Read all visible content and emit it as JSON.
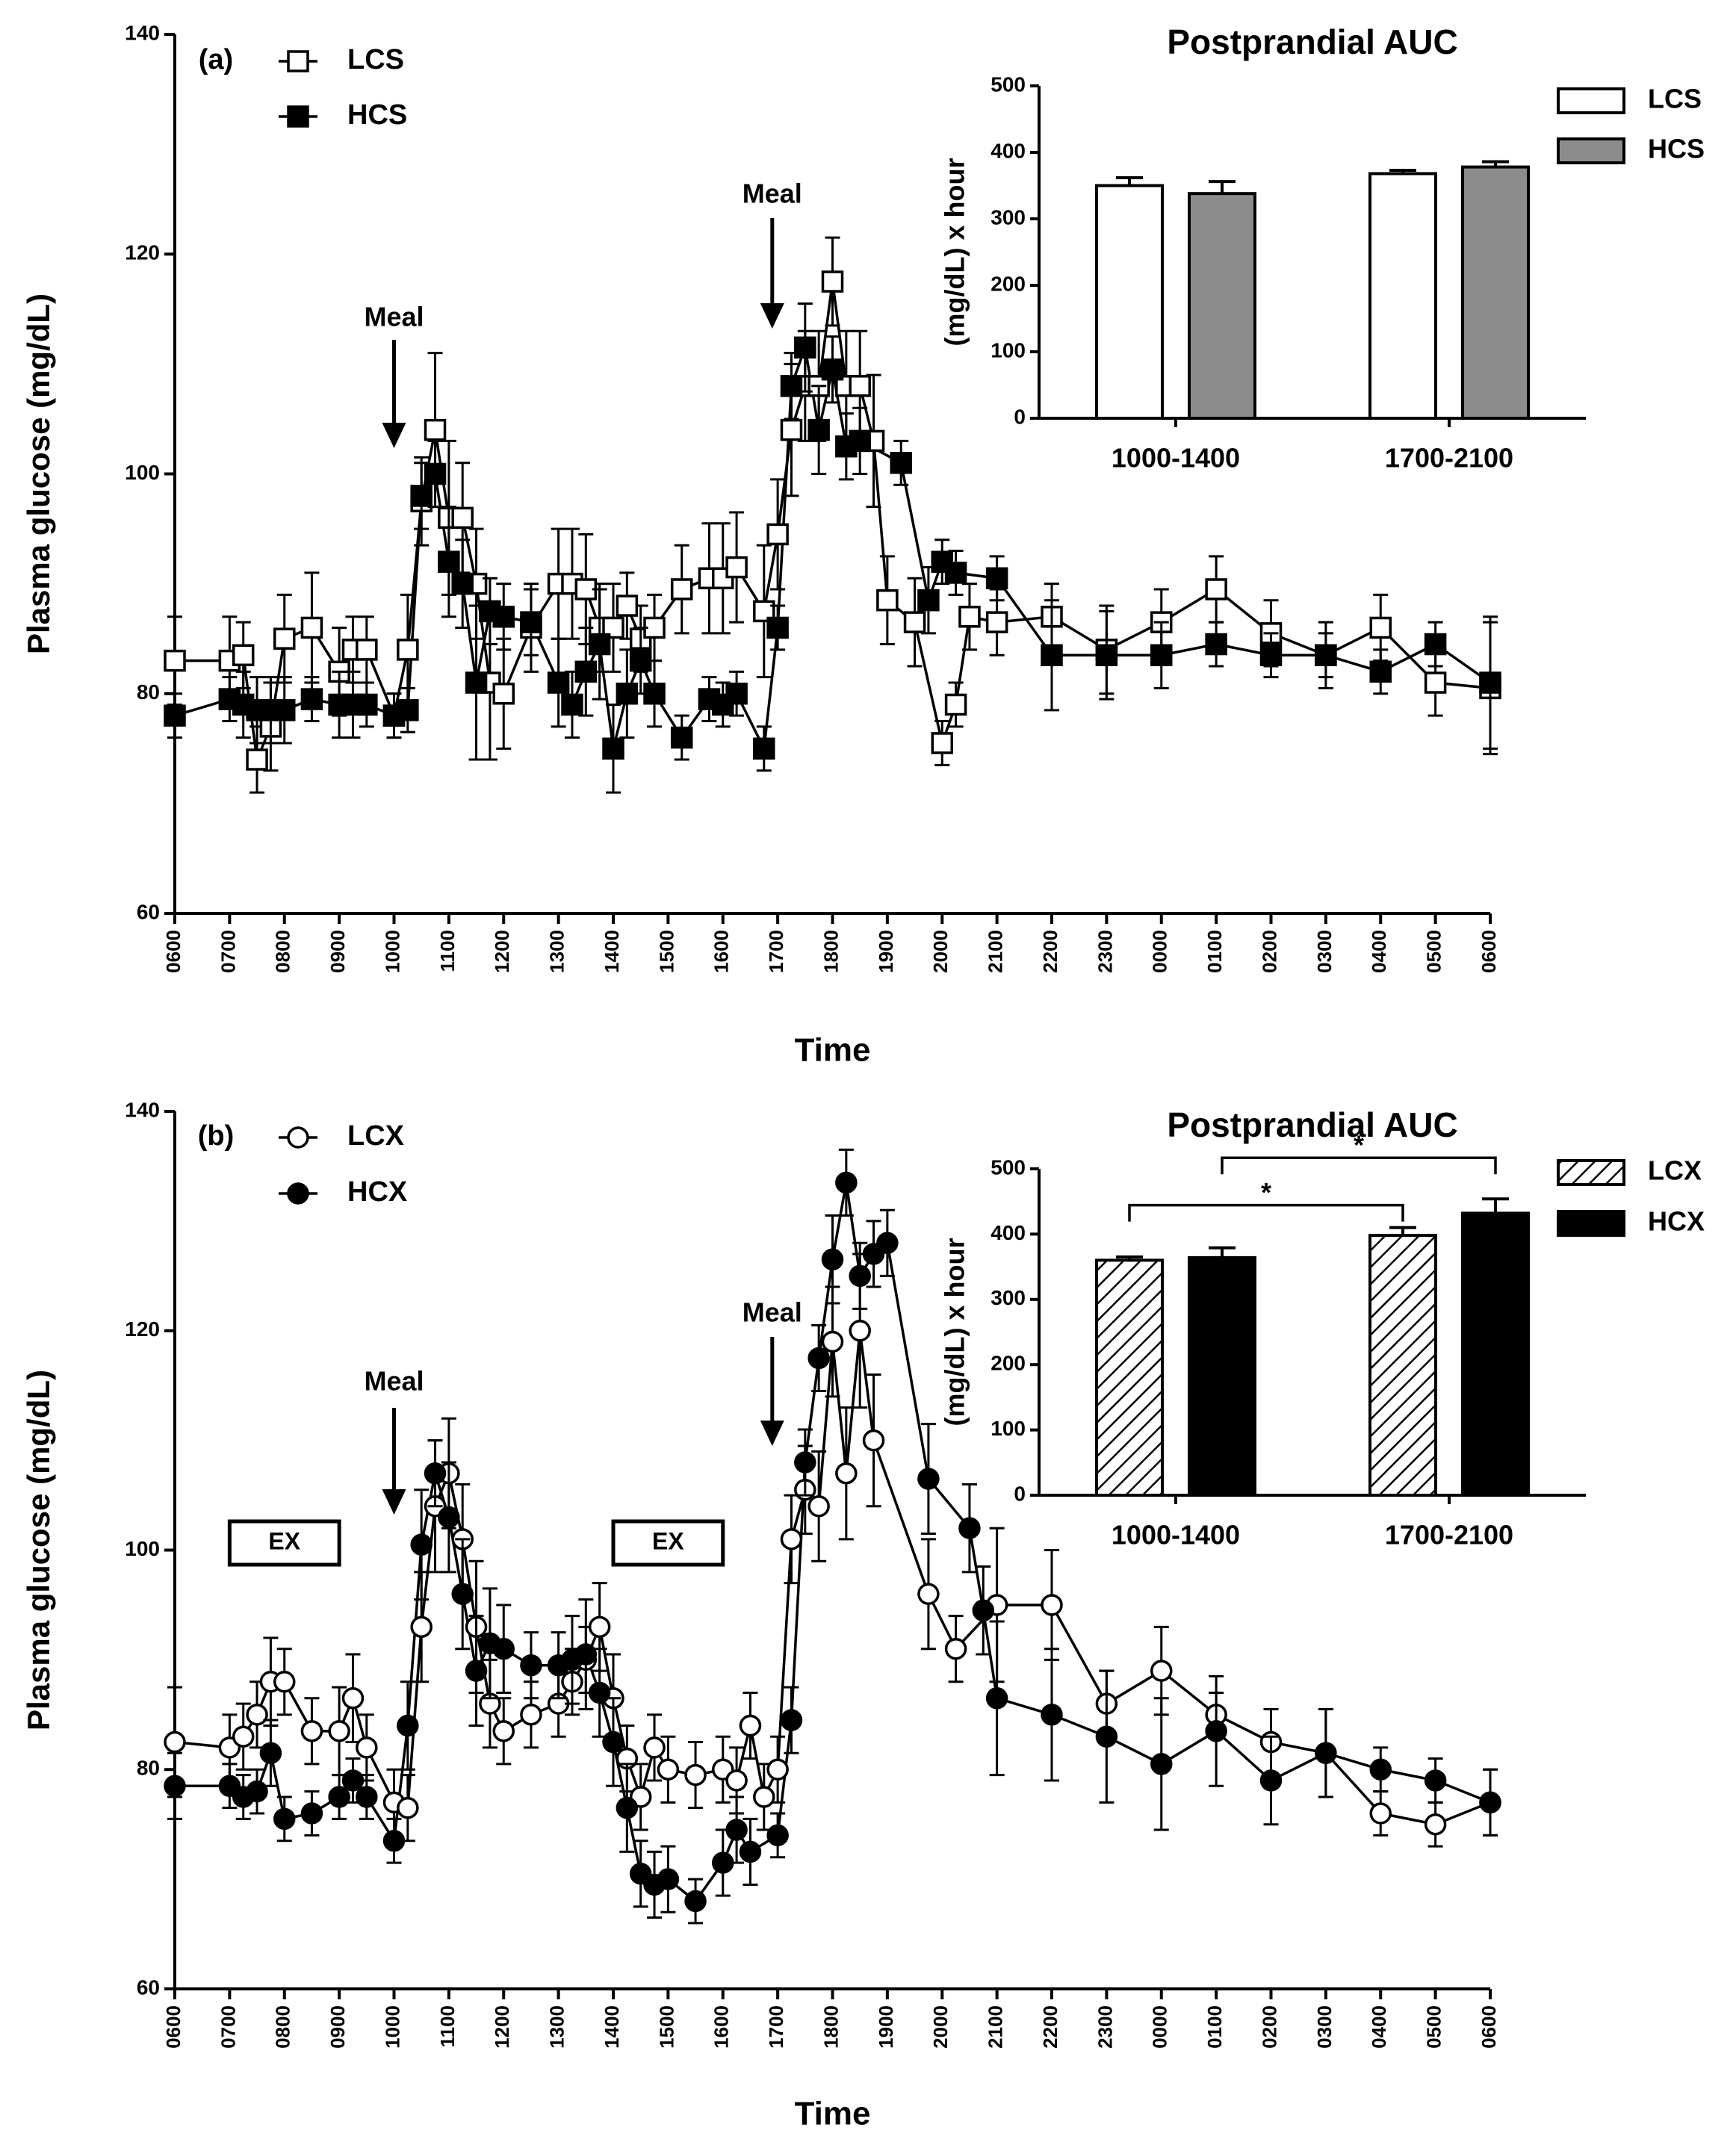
{
  "chart_data": [
    {
      "type": "line",
      "panel_label": "(a)",
      "xlabel": "Time",
      "ylabel": "Plasma glucose (mg/dL)",
      "xlim": [
        6,
        30
      ],
      "ylim": [
        60,
        140
      ],
      "yticks": [
        60,
        80,
        100,
        120,
        140
      ],
      "xticks": [
        {
          "value": 6,
          "label": "0600"
        },
        {
          "value": 7,
          "label": "0700"
        },
        {
          "value": 8,
          "label": "0800"
        },
        {
          "value": 9,
          "label": "0900"
        },
        {
          "value": 10,
          "label": "1000"
        },
        {
          "value": 11,
          "label": "1100"
        },
        {
          "value": 12,
          "label": "1200"
        },
        {
          "value": 13,
          "label": "1300"
        },
        {
          "value": 14,
          "label": "1400"
        },
        {
          "value": 15,
          "label": "1500"
        },
        {
          "value": 16,
          "label": "1600"
        },
        {
          "value": 17,
          "label": "1700"
        },
        {
          "value": 18,
          "label": "1800"
        },
        {
          "value": 19,
          "label": "1900"
        },
        {
          "value": 20,
          "label": "2000"
        },
        {
          "value": 21,
          "label": "2100"
        },
        {
          "value": 22,
          "label": "2200"
        },
        {
          "value": 23,
          "label": "2300"
        },
        {
          "value": 24,
          "label": "0000"
        },
        {
          "value": 25,
          "label": "0100"
        },
        {
          "value": 26,
          "label": "0200"
        },
        {
          "value": 27,
          "label": "0300"
        },
        {
          "value": 28,
          "label": "0400"
        },
        {
          "value": 29,
          "label": "0500"
        },
        {
          "value": 30,
          "label": "0600"
        }
      ],
      "legend": "upper left",
      "annotations": [
        {
          "text": "Meal",
          "x": 10
        },
        {
          "text": "Meal",
          "x": 16.9
        }
      ],
      "series": [
        {
          "name": "LCS",
          "marker": "square",
          "color": "#000000",
          "fill": "#ffffff",
          "x": [
            6,
            7,
            7.25,
            7.5,
            7.75,
            8,
            8.5,
            9,
            9.25,
            9.5,
            10,
            10.25,
            10.5,
            10.75,
            11,
            11.25,
            11.5,
            11.75,
            12,
            12.5,
            13,
            13.25,
            13.5,
            13.75,
            14,
            14.25,
            14.5,
            14.75,
            15.25,
            15.75,
            16,
            16.25,
            16.75,
            17,
            17.25,
            17.5,
            17.75,
            18,
            18.25,
            18.5,
            18.75,
            19,
            19.5,
            20,
            20.25,
            20.5,
            21,
            22,
            23,
            24,
            25,
            26,
            27,
            28,
            29,
            30
          ],
          "values": [
            83,
            83,
            83.5,
            74,
            77,
            85,
            86,
            82,
            84,
            84,
            78,
            84,
            97.5,
            104,
            96,
            96,
            90,
            81,
            80,
            86,
            90,
            90,
            89.5,
            86,
            86,
            88,
            85,
            86,
            89.5,
            90.5,
            90.5,
            91.5,
            87.5,
            94.5,
            104,
            108,
            108,
            117.5,
            108,
            108,
            103,
            88.5,
            86.5,
            75.5,
            79,
            87,
            86.5,
            87,
            84,
            86.5,
            89.5,
            85.5,
            83.5,
            86,
            81,
            80.5
          ],
          "errors": [
            4,
            4,
            3,
            3,
            4,
            4,
            5,
            4,
            3,
            3,
            2,
            5,
            4,
            7,
            7,
            5,
            5,
            7,
            5,
            4,
            5,
            5,
            5,
            4,
            4,
            3,
            3,
            3,
            4,
            5,
            5,
            5,
            6,
            5,
            6,
            5,
            5,
            4,
            5,
            5,
            6,
            4,
            4,
            2,
            2,
            3,
            3,
            3,
            4,
            3,
            3,
            3,
            3,
            3,
            3,
            6
          ]
        },
        {
          "name": "HCS",
          "marker": "square",
          "color": "#000000",
          "fill": "#000000",
          "x": [
            6,
            7,
            7.25,
            7.5,
            7.75,
            8,
            8.5,
            9,
            9.25,
            9.5,
            10,
            10.25,
            10.5,
            10.75,
            11,
            11.25,
            11.5,
            11.75,
            12,
            12.5,
            13,
            13.25,
            13.5,
            13.75,
            14,
            14.25,
            14.5,
            14.75,
            15.25,
            15.75,
            16,
            16.25,
            16.75,
            17,
            17.25,
            17.5,
            17.75,
            18,
            18.25,
            18.5,
            19.25,
            19.75,
            20,
            20.25,
            21,
            22,
            23,
            24,
            25,
            26,
            27,
            28,
            29,
            30
          ],
          "values": [
            78,
            79.5,
            79,
            78.5,
            78.5,
            78.5,
            79.5,
            79,
            79,
            79,
            78,
            78.5,
            98,
            100,
            92,
            90,
            81,
            87.5,
            87,
            86.5,
            81,
            79,
            82,
            84.5,
            75,
            80,
            83,
            80,
            76,
            79.5,
            79,
            80,
            75,
            86,
            108,
            111.5,
            104,
            109.5,
            102.5,
            103,
            101,
            88.5,
            92,
            91,
            90.5,
            83.5,
            83.5,
            83.5,
            84.5,
            83.5,
            83.5,
            82,
            84.5,
            81
          ],
          "errors": [
            2,
            2,
            3,
            3,
            3,
            3,
            2,
            3,
            3,
            2,
            2,
            2,
            3,
            3,
            5,
            4,
            7,
            3,
            3,
            3,
            4,
            3,
            4,
            5,
            4,
            4,
            3,
            3,
            2,
            2,
            2,
            2,
            2,
            2,
            3,
            4,
            4,
            3,
            3,
            3,
            2,
            3,
            2,
            2,
            2,
            5,
            4,
            3,
            2,
            2,
            2,
            2,
            2,
            6
          ]
        }
      ]
    },
    {
      "type": "line",
      "panel_label": "(b)",
      "xlabel": "Time",
      "ylabel": "Plasma glucose (mg/dL)",
      "xlim": [
        6,
        30
      ],
      "ylim": [
        60,
        140
      ],
      "yticks": [
        60,
        80,
        100,
        120,
        140
      ],
      "xticks": [
        {
          "value": 6,
          "label": "0600"
        },
        {
          "value": 7,
          "label": "0700"
        },
        {
          "value": 8,
          "label": "0800"
        },
        {
          "value": 9,
          "label": "0900"
        },
        {
          "value": 10,
          "label": "1000"
        },
        {
          "value": 11,
          "label": "1100"
        },
        {
          "value": 12,
          "label": "1200"
        },
        {
          "value": 13,
          "label": "1300"
        },
        {
          "value": 14,
          "label": "1400"
        },
        {
          "value": 15,
          "label": "1500"
        },
        {
          "value": 16,
          "label": "1600"
        },
        {
          "value": 17,
          "label": "1700"
        },
        {
          "value": 18,
          "label": "1800"
        },
        {
          "value": 19,
          "label": "1900"
        },
        {
          "value": 20,
          "label": "2000"
        },
        {
          "value": 21,
          "label": "2100"
        },
        {
          "value": 22,
          "label": "2200"
        },
        {
          "value": 23,
          "label": "2300"
        },
        {
          "value": 24,
          "label": "0000"
        },
        {
          "value": 25,
          "label": "0100"
        },
        {
          "value": 26,
          "label": "0200"
        },
        {
          "value": 27,
          "label": "0300"
        },
        {
          "value": 28,
          "label": "0400"
        },
        {
          "value": 29,
          "label": "0500"
        },
        {
          "value": 30,
          "label": "0600"
        }
      ],
      "legend": "upper left",
      "annotations": [
        {
          "text": "Meal",
          "x": 10
        },
        {
          "text": "Meal",
          "x": 16.9
        },
        {
          "text": "EX",
          "x": [
            7,
            9
          ]
        },
        {
          "text": "EX",
          "x": [
            14,
            16
          ]
        }
      ],
      "series": [
        {
          "name": "LCX",
          "marker": "circle",
          "color": "#000000",
          "fill": "#ffffff",
          "x": [
            6,
            7,
            7.25,
            7.5,
            7.75,
            8,
            8.5,
            9,
            9.25,
            9.5,
            10,
            10.25,
            10.5,
            10.75,
            11,
            11.25,
            11.5,
            11.75,
            12,
            12.5,
            13,
            13.25,
            13.5,
            13.75,
            14,
            14.25,
            14.5,
            14.75,
            15,
            15.5,
            16,
            16.25,
            16.5,
            16.75,
            17,
            17.25,
            17.5,
            17.75,
            18,
            18.25,
            18.5,
            18.75,
            19.75,
            20.25,
            21,
            22,
            23,
            24,
            25,
            26,
            27,
            28,
            29,
            30
          ],
          "values": [
            82.5,
            82,
            83,
            85,
            88,
            88,
            83.5,
            83.5,
            86.5,
            82,
            77,
            76.5,
            93,
            104,
            107,
            101,
            93,
            86,
            83.5,
            85,
            86,
            88,
            90,
            93,
            86.5,
            81,
            77.5,
            82,
            80,
            79.5,
            80,
            79,
            84,
            77.5,
            80,
            101,
            105.5,
            104,
            119,
            107,
            120,
            110,
            96,
            91,
            95,
            95,
            86,
            89,
            85,
            82.5,
            81.5,
            76,
            75,
            77
          ],
          "errors": [
            5,
            3,
            3,
            3,
            4,
            3,
            3,
            4,
            4,
            3,
            3,
            3,
            5,
            6,
            5,
            5,
            6,
            4,
            3,
            3,
            3,
            3,
            3,
            4,
            4,
            3,
            3,
            3,
            3,
            3,
            3,
            3,
            3,
            3,
            3,
            4,
            4,
            5,
            5,
            6,
            7,
            6,
            5,
            3,
            7,
            5,
            3,
            4,
            2,
            3,
            4,
            2,
            2,
            3
          ]
        },
        {
          "name": "HCX",
          "marker": "circle",
          "color": "#000000",
          "fill": "#000000",
          "x": [
            6,
            7,
            7.25,
            7.5,
            7.75,
            8,
            8.5,
            9,
            9.25,
            9.5,
            10,
            10.25,
            10.5,
            10.75,
            11,
            11.25,
            11.5,
            11.75,
            12,
            12.5,
            13,
            13.25,
            13.5,
            13.75,
            14,
            14.25,
            14.5,
            14.75,
            15,
            15.5,
            16,
            16.25,
            16.5,
            17,
            17.25,
            17.5,
            17.75,
            18,
            18.25,
            18.5,
            18.75,
            19,
            19.75,
            20.5,
            20.75,
            21,
            22,
            23,
            24,
            25,
            26,
            27,
            28,
            29,
            30
          ],
          "values": [
            78.5,
            78.5,
            77.5,
            78,
            81.5,
            75.5,
            76,
            77.5,
            79,
            77.5,
            73.5,
            84,
            100.5,
            107,
            103,
            96,
            89,
            91.5,
            91,
            89.5,
            89.5,
            90,
            90.5,
            87,
            82.5,
            76.5,
            70.5,
            69.5,
            70,
            68,
            71.5,
            74.5,
            72.5,
            74,
            84.5,
            108,
            117.5,
            126.5,
            133.5,
            125,
            127,
            128,
            106.5,
            102,
            94.5,
            86.5,
            85,
            83,
            80.5,
            83.5,
            79,
            81.5,
            80,
            79,
            77
          ],
          "errors": [
            3,
            2,
            2,
            2,
            3,
            2,
            2,
            2,
            2,
            2,
            2,
            4,
            5,
            3,
            5,
            5,
            5,
            5,
            4,
            3,
            3,
            4,
            5,
            4,
            4,
            4,
            3,
            3,
            3,
            2,
            3,
            3,
            3,
            2,
            3,
            3,
            3,
            4,
            3,
            3,
            3,
            3,
            5,
            4,
            4,
            7,
            6,
            6,
            6,
            5,
            4,
            4,
            2,
            2,
            3
          ]
        }
      ]
    },
    {
      "type": "bar",
      "title": "Postprandial AUC",
      "ylabel": "(mg/dL) x hour",
      "categories": [
        "1000-1400",
        "1700-2100"
      ],
      "ylim": [
        0,
        500
      ],
      "yticks": [
        0,
        100,
        200,
        300,
        400,
        500
      ],
      "legend": "upper right",
      "series": [
        {
          "name": "LCS",
          "color": "#ffffff",
          "values": [
            350,
            368
          ],
          "errors": [
            12,
            5
          ]
        },
        {
          "name": "HCS",
          "color": "#8c8c8c",
          "values": [
            338,
            378
          ],
          "errors": [
            18,
            8
          ]
        }
      ]
    },
    {
      "type": "bar",
      "title": "Postprandial AUC",
      "ylabel": "(mg/dL) x hour",
      "categories": [
        "1000-1400",
        "1700-2100"
      ],
      "ylim": [
        0,
        500
      ],
      "yticks": [
        0,
        100,
        200,
        300,
        400,
        500
      ],
      "legend": "upper right",
      "series": [
        {
          "name": "LCX",
          "color": "#ffffff",
          "pattern": "hatch",
          "values": [
            360,
            398
          ],
          "errors": [
            5,
            12
          ]
        },
        {
          "name": "HCX",
          "color": "#000000",
          "values": [
            364,
            432
          ],
          "errors": [
            15,
            22
          ]
        }
      ],
      "significance": [
        {
          "label": "*",
          "from": [
            0,
            0
          ],
          "to": [
            0,
            1
          ]
        },
        {
          "label": "*",
          "from": [
            1,
            0
          ],
          "to": [
            1,
            1
          ]
        }
      ]
    }
  ]
}
